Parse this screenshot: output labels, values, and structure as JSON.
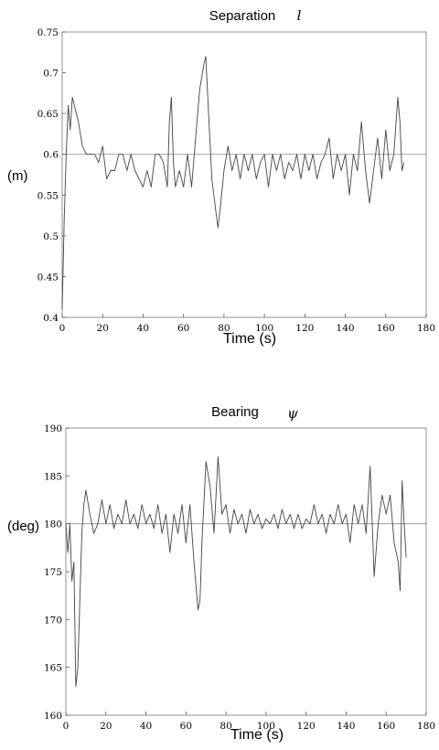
{
  "chart_data": [
    {
      "type": "line",
      "title": "Separation",
      "title_symbol": "l",
      "xlabel": "Time (s)",
      "ylabel": "(m)",
      "xlim": [
        0,
        180
      ],
      "ylim": [
        0.4,
        0.75
      ],
      "x_ticks": [
        0,
        20,
        40,
        60,
        80,
        100,
        120,
        140,
        160,
        180
      ],
      "y_ticks": [
        0.4,
        0.45,
        0.5,
        0.55,
        0.6,
        0.65,
        0.7,
        0.75
      ],
      "y_tick_labels": [
        "0.4",
        "0.45",
        "0.5",
        "0.55",
        "0.6",
        "0.65",
        "0.7",
        "0.75"
      ],
      "grid": false,
      "reference_line": 0.6,
      "series": [
        {
          "points": [
            [
              0,
              0.41
            ],
            [
              1,
              0.52
            ],
            [
              2,
              0.6
            ],
            [
              3,
              0.66
            ],
            [
              4,
              0.63
            ],
            [
              5,
              0.67
            ],
            [
              6,
              0.66
            ],
            [
              8,
              0.64
            ],
            [
              10,
              0.61
            ],
            [
              12,
              0.6
            ],
            [
              14,
              0.6
            ],
            [
              16,
              0.6
            ],
            [
              18,
              0.59
            ],
            [
              20,
              0.61
            ],
            [
              22,
              0.57
            ],
            [
              24,
              0.58
            ],
            [
              26,
              0.58
            ],
            [
              28,
              0.6
            ],
            [
              30,
              0.6
            ],
            [
              32,
              0.58
            ],
            [
              34,
              0.6
            ],
            [
              36,
              0.58
            ],
            [
              38,
              0.57
            ],
            [
              40,
              0.56
            ],
            [
              42,
              0.58
            ],
            [
              44,
              0.56
            ],
            [
              46,
              0.6
            ],
            [
              48,
              0.6
            ],
            [
              50,
              0.59
            ],
            [
              52,
              0.56
            ],
            [
              53,
              0.64
            ],
            [
              54,
              0.67
            ],
            [
              55,
              0.59
            ],
            [
              56,
              0.56
            ],
            [
              58,
              0.58
            ],
            [
              60,
              0.56
            ],
            [
              62,
              0.6
            ],
            [
              64,
              0.56
            ],
            [
              66,
              0.62
            ],
            [
              68,
              0.68
            ],
            [
              70,
              0.71
            ],
            [
              71,
              0.72
            ],
            [
              72,
              0.67
            ],
            [
              74,
              0.57
            ],
            [
              76,
              0.53
            ],
            [
              77,
              0.51
            ],
            [
              78,
              0.53
            ],
            [
              80,
              0.58
            ],
            [
              82,
              0.61
            ],
            [
              84,
              0.58
            ],
            [
              86,
              0.6
            ],
            [
              88,
              0.57
            ],
            [
              90,
              0.6
            ],
            [
              92,
              0.58
            ],
            [
              94,
              0.6
            ],
            [
              96,
              0.57
            ],
            [
              98,
              0.59
            ],
            [
              100,
              0.6
            ],
            [
              102,
              0.56
            ],
            [
              104,
              0.6
            ],
            [
              106,
              0.58
            ],
            [
              108,
              0.6
            ],
            [
              110,
              0.57
            ],
            [
              112,
              0.59
            ],
            [
              114,
              0.58
            ],
            [
              116,
              0.6
            ],
            [
              118,
              0.57
            ],
            [
              120,
              0.6
            ],
            [
              122,
              0.58
            ],
            [
              124,
              0.6
            ],
            [
              126,
              0.57
            ],
            [
              128,
              0.59
            ],
            [
              130,
              0.6
            ],
            [
              132,
              0.62
            ],
            [
              134,
              0.57
            ],
            [
              136,
              0.6
            ],
            [
              138,
              0.58
            ],
            [
              140,
              0.6
            ],
            [
              142,
              0.55
            ],
            [
              144,
              0.6
            ],
            [
              146,
              0.58
            ],
            [
              148,
              0.64
            ],
            [
              150,
              0.58
            ],
            [
              152,
              0.54
            ],
            [
              154,
              0.58
            ],
            [
              156,
              0.62
            ],
            [
              158,
              0.57
            ],
            [
              160,
              0.63
            ],
            [
              162,
              0.58
            ],
            [
              164,
              0.6
            ],
            [
              166,
              0.67
            ],
            [
              167,
              0.64
            ],
            [
              168,
              0.58
            ],
            [
              169,
              0.59
            ]
          ]
        }
      ]
    },
    {
      "type": "line",
      "title": "Bearing",
      "title_symbol": "ψ",
      "xlabel": "Time (s)",
      "ylabel": "(deg)",
      "xlim": [
        0,
        180
      ],
      "ylim": [
        160,
        190
      ],
      "x_ticks": [
        0,
        20,
        40,
        60,
        80,
        100,
        120,
        140,
        160,
        180
      ],
      "y_ticks": [
        160,
        165,
        170,
        175,
        180,
        185,
        190
      ],
      "y_tick_labels": [
        "160",
        "165",
        "170",
        "175",
        "180",
        "185",
        "190"
      ],
      "grid": false,
      "reference_line": 180,
      "series": [
        {
          "points": [
            [
              0,
              180
            ],
            [
              1,
              177
            ],
            [
              2,
              180
            ],
            [
              3,
              174
            ],
            [
              4,
              176
            ],
            [
              5,
              163
            ],
            [
              6,
              165
            ],
            [
              7,
              172
            ],
            [
              8,
              179
            ],
            [
              9,
              182
            ],
            [
              10,
              183.5
            ],
            [
              12,
              181
            ],
            [
              14,
              179
            ],
            [
              16,
              180
            ],
            [
              18,
              182.5
            ],
            [
              20,
              180
            ],
            [
              22,
              182
            ],
            [
              24,
              179.5
            ],
            [
              26,
              181
            ],
            [
              28,
              180
            ],
            [
              30,
              182.5
            ],
            [
              32,
              180
            ],
            [
              34,
              181
            ],
            [
              36,
              179.5
            ],
            [
              38,
              182
            ],
            [
              40,
              180
            ],
            [
              42,
              181
            ],
            [
              44,
              179.5
            ],
            [
              46,
              182
            ],
            [
              48,
              179
            ],
            [
              50,
              181
            ],
            [
              52,
              177
            ],
            [
              54,
              181
            ],
            [
              56,
              179
            ],
            [
              58,
              182
            ],
            [
              60,
              178
            ],
            [
              62,
              182
            ],
            [
              64,
              176
            ],
            [
              66,
              171
            ],
            [
              67,
              172
            ],
            [
              68,
              178
            ],
            [
              70,
              186.5
            ],
            [
              72,
              184
            ],
            [
              74,
              179
            ],
            [
              76,
              187
            ],
            [
              78,
              181
            ],
            [
              80,
              182
            ],
            [
              82,
              179
            ],
            [
              84,
              181.5
            ],
            [
              86,
              180
            ],
            [
              88,
              181
            ],
            [
              90,
              179
            ],
            [
              92,
              181.5
            ],
            [
              94,
              180
            ],
            [
              96,
              181
            ],
            [
              98,
              179.5
            ],
            [
              100,
              180.5
            ],
            [
              102,
              180
            ],
            [
              104,
              181
            ],
            [
              106,
              179.5
            ],
            [
              108,
              181.5
            ],
            [
              110,
              180
            ],
            [
              112,
              181
            ],
            [
              114,
              179.5
            ],
            [
              116,
              181
            ],
            [
              118,
              179.5
            ],
            [
              120,
              180.5
            ],
            [
              122,
              180
            ],
            [
              124,
              182
            ],
            [
              126,
              180
            ],
            [
              128,
              181
            ],
            [
              130,
              179
            ],
            [
              132,
              181
            ],
            [
              134,
              180
            ],
            [
              136,
              182
            ],
            [
              138,
              180
            ],
            [
              140,
              181
            ],
            [
              142,
              178
            ],
            [
              144,
              182
            ],
            [
              146,
              180
            ],
            [
              148,
              182
            ],
            [
              150,
              179
            ],
            [
              152,
              186
            ],
            [
              154,
              174.5
            ],
            [
              156,
              180
            ],
            [
              158,
              183
            ],
            [
              160,
              181
            ],
            [
              162,
              183
            ],
            [
              164,
              178
            ],
            [
              166,
              176
            ],
            [
              167,
              173
            ],
            [
              168,
              184.5
            ],
            [
              169,
              180
            ],
            [
              170,
              176.5
            ]
          ]
        }
      ]
    }
  ]
}
